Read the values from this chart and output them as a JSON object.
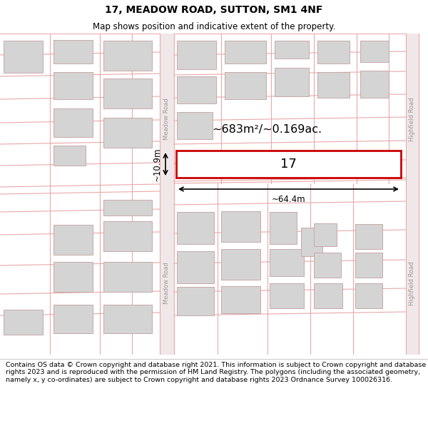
{
  "title": "17, MEADOW ROAD, SUTTON, SM1 4NF",
  "subtitle": "Map shows position and indicative extent of the property.",
  "footer": "Contains OS data © Crown copyright and database right 2021. This information is subject to Crown copyright and database rights 2023 and is reproduced with the permission of HM Land Registry. The polygons (including the associated geometry, namely x, y co-ordinates) are subject to Crown copyright and database rights 2023 Ordnance Survey 100026316.",
  "area_text": "~683m²/~0.169ac.",
  "width_text": "~64.4m",
  "height_text": "~10.9m",
  "number_text": "17",
  "road1_label": "Meadow Road",
  "road2_label": "Meadow Road",
  "road3_label": "Highfield Road",
  "road4_label": "Highfield Road",
  "pink": "#e8a8a8",
  "building_fill": "#d4d4d4",
  "building_edge": "#c8a8a8",
  "road_fill": "#f0e8e8",
  "subject_fill": "#ffffff",
  "subject_edge": "#cc0000"
}
